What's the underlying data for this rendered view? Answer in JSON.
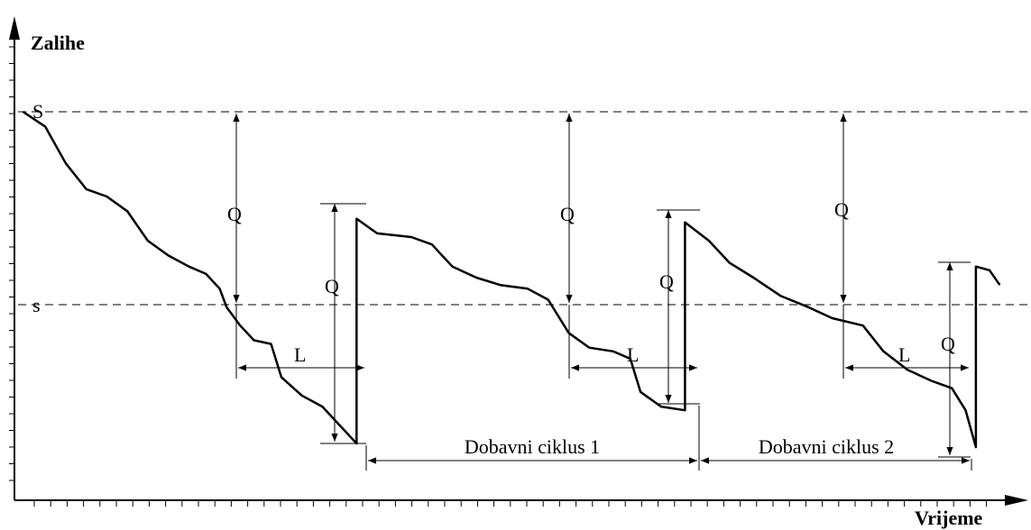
{
  "chart_data": {
    "type": "line",
    "title": "",
    "xlabel": "Vrijeme",
    "ylabel": "Zalihe",
    "level_labels": {
      "S": "S",
      "s": "s"
    },
    "order_quantity_label": "Q",
    "lead_time_label": "L",
    "cycle_labels": [
      "Dobavni ciklus 1",
      "Dobavni ciklus 2"
    ],
    "series": [
      {
        "values": [
          [
            0.25,
            9.0
          ],
          [
            0.9,
            8.6
          ],
          [
            1.5,
            7.6
          ],
          [
            2.1,
            6.9
          ],
          [
            2.7,
            6.7
          ],
          [
            3.3,
            6.3
          ],
          [
            3.9,
            5.5
          ],
          [
            4.5,
            5.1
          ],
          [
            5.1,
            4.8
          ],
          [
            5.6,
            4.6
          ],
          [
            6.0,
            4.2
          ],
          [
            6.2,
            3.7
          ],
          [
            6.6,
            3.2
          ],
          [
            7.0,
            2.8
          ],
          [
            7.5,
            2.7
          ],
          [
            7.8,
            1.8
          ],
          [
            8.4,
            1.3
          ],
          [
            9.0,
            1.0
          ],
          [
            9.6,
            0.4
          ],
          [
            10.0,
            0.0
          ],
          [
            10.0,
            6.1
          ],
          [
            10.6,
            5.7
          ],
          [
            11.6,
            5.6
          ],
          [
            12.2,
            5.4
          ],
          [
            12.8,
            4.8
          ],
          [
            13.5,
            4.5
          ],
          [
            14.2,
            4.3
          ],
          [
            15.0,
            4.2
          ],
          [
            15.6,
            3.9
          ],
          [
            16.2,
            3.0
          ],
          [
            16.8,
            2.6
          ],
          [
            17.5,
            2.5
          ],
          [
            18.0,
            2.3
          ],
          [
            18.3,
            1.4
          ],
          [
            18.9,
            1.0
          ],
          [
            19.6,
            0.9
          ],
          [
            19.6,
            6.0
          ],
          [
            20.3,
            5.5
          ],
          [
            20.9,
            4.9
          ],
          [
            21.6,
            4.5
          ],
          [
            22.4,
            4.0
          ],
          [
            23.2,
            3.7
          ],
          [
            23.9,
            3.4
          ],
          [
            24.8,
            3.2
          ],
          [
            25.4,
            2.5
          ],
          [
            26.1,
            2.0
          ],
          [
            26.8,
            1.7
          ],
          [
            27.4,
            1.5
          ],
          [
            27.8,
            0.9
          ],
          [
            28.1,
            -0.1
          ],
          [
            28.1,
            4.8
          ],
          [
            28.5,
            4.7
          ],
          [
            28.8,
            4.3
          ]
        ]
      }
    ],
    "S_level": 9.0,
    "s_level": 3.7,
    "xlim": [
      0,
      29
    ],
    "ylim": [
      -0.5,
      12
    ]
  }
}
